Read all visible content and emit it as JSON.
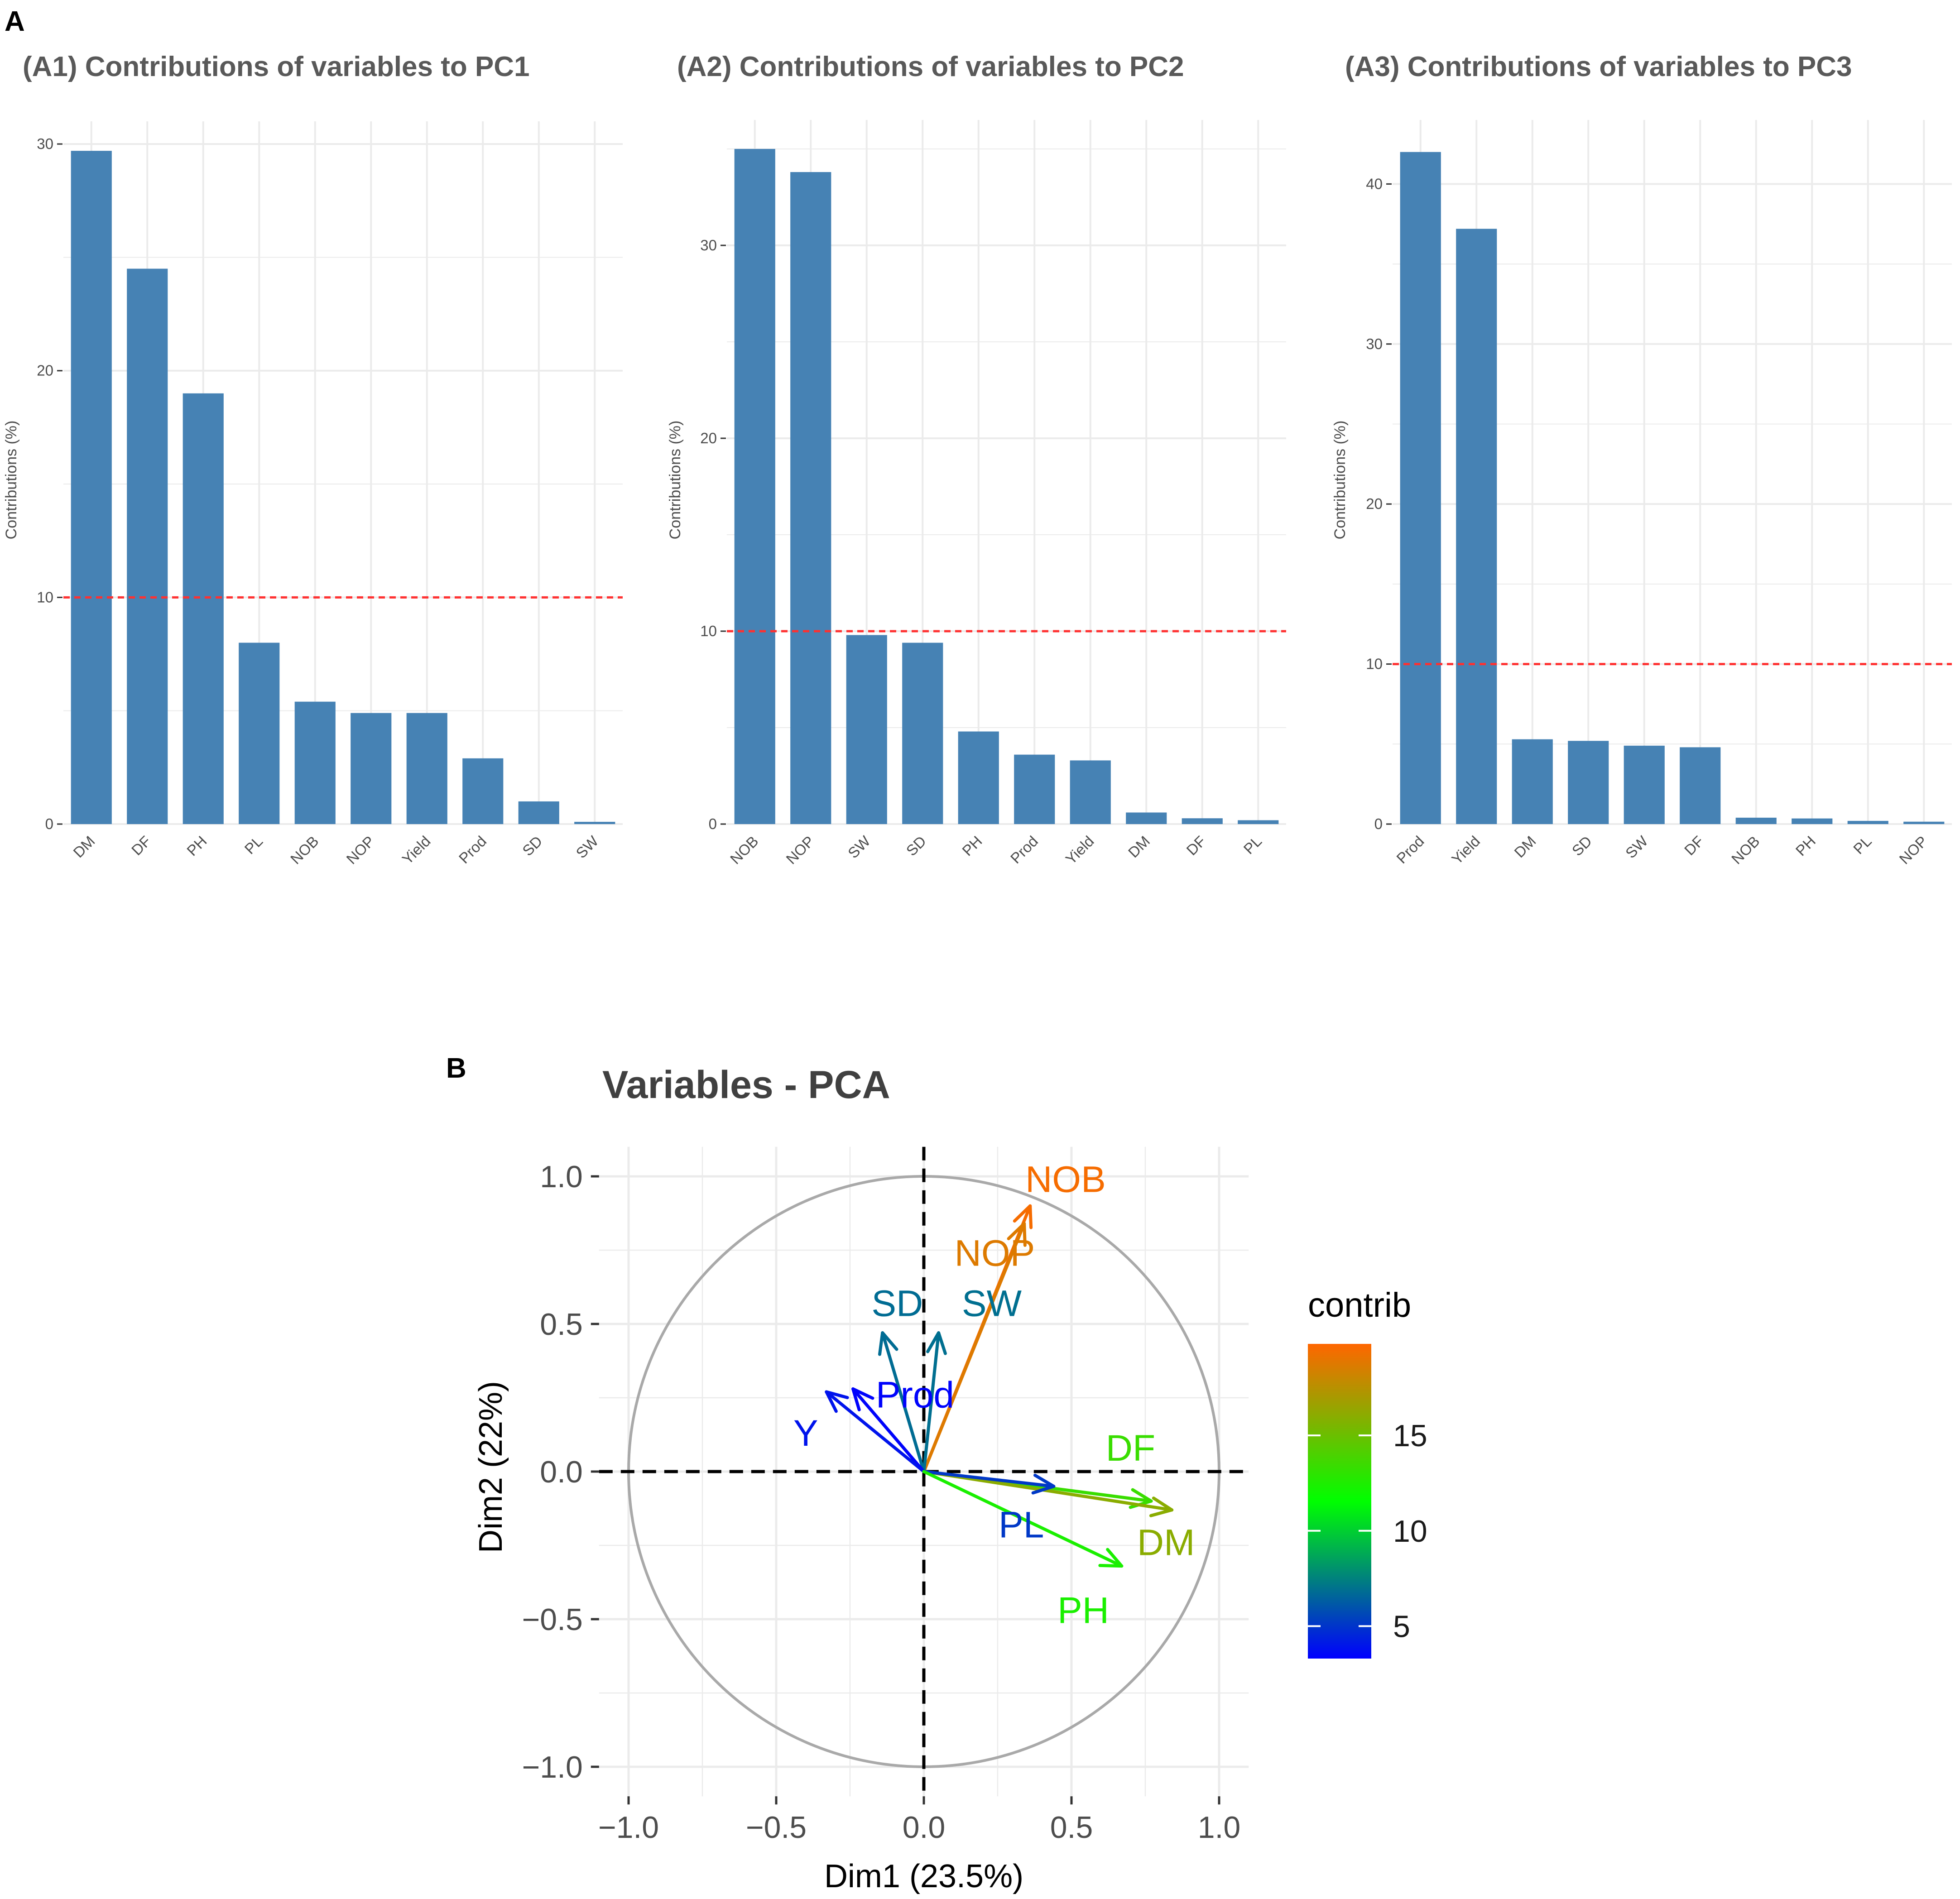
{
  "panel_labels": {
    "a": "A",
    "b": "B"
  },
  "colors": {
    "bar": "#4682b4",
    "threshold": "#ff3030",
    "grid": "#ebebeb",
    "circle": "#a9a9a9",
    "gradient": [
      "#0000ff",
      "#00ff00",
      "#ff6600"
    ]
  },
  "chart_data": [
    {
      "type": "bar",
      "title": "(A1) Contributions of variables to PC1",
      "ylabel": "Contributions (%)",
      "xlabel": "",
      "categories": [
        "DM",
        "DF",
        "PH",
        "PL",
        "NOB",
        "NOP",
        "Yield",
        "Prod",
        "SD",
        "SW"
      ],
      "values": [
        29.7,
        24.5,
        19.0,
        8.0,
        5.4,
        4.9,
        4.9,
        2.9,
        1.0,
        0.1
      ],
      "threshold": 10,
      "ylim": [
        0,
        31
      ],
      "yticks": [
        0,
        10,
        20,
        30
      ]
    },
    {
      "type": "bar",
      "title": "(A2) Contributions of variables to PC2",
      "ylabel": "Contributions (%)",
      "xlabel": "",
      "categories": [
        "NOB",
        "NOP",
        "SW",
        "SD",
        "PH",
        "Prod",
        "Yield",
        "DM",
        "DF",
        "PL"
      ],
      "values": [
        35.0,
        33.8,
        9.8,
        9.4,
        4.8,
        3.6,
        3.3,
        0.6,
        0.3,
        0.2
      ],
      "threshold": 10,
      "ylim": [
        0,
        36.5
      ],
      "yticks": [
        0,
        10,
        20,
        30
      ]
    },
    {
      "type": "bar",
      "title": "(A3) Contributions of variables to PC3",
      "ylabel": "Contributions (%)",
      "xlabel": "",
      "categories": [
        "Prod",
        "Yield",
        "DM",
        "SD",
        "SW",
        "DF",
        "NOB",
        "PH",
        "PL",
        "NOP"
      ],
      "values": [
        42.0,
        37.2,
        5.3,
        5.2,
        4.9,
        4.8,
        0.4,
        0.35,
        0.2,
        0.15
      ],
      "threshold": 10,
      "ylim": [
        0,
        44
      ],
      "yticks": [
        0,
        10,
        20,
        30,
        40
      ]
    },
    {
      "type": "scatter",
      "subtype": "pca-variable-correlation-circle",
      "title": "Variables - PCA",
      "xlabel": "Dim1 (23.5%)",
      "ylabel": "Dim2 (22%)",
      "xlim": [
        -1.1,
        1.1
      ],
      "ylim": [
        -1.1,
        1.1
      ],
      "xticks": [
        "−1.0",
        "−0.5",
        "0.0",
        "0.5",
        "1.0"
      ],
      "yticks": [
        "−1.0",
        "−0.5",
        "0.0",
        "0.5",
        "1.0"
      ],
      "xtick_values": [
        -1.0,
        -0.5,
        0.0,
        0.5,
        1.0
      ],
      "ytick_values": [
        -1.0,
        -0.5,
        0.0,
        0.5,
        1.0
      ],
      "legend_title": "contrib",
      "legend_position": "right",
      "legend_range": [
        3.3,
        19.8
      ],
      "legend_ticks": [
        {
          "value": 5,
          "label": "5"
        },
        {
          "value": 10,
          "label": "10"
        },
        {
          "value": 15,
          "label": "15"
        }
      ],
      "variables": [
        {
          "name": "NOB",
          "x": 0.36,
          "y": 0.9,
          "contrib": 19.5,
          "label_dx": 0.12,
          "label_dy": 0.09
        },
        {
          "name": "NOP",
          "x": 0.34,
          "y": 0.84,
          "contrib": 18.7,
          "label_dx": -0.1,
          "label_dy": -0.1
        },
        {
          "name": "SD",
          "x": -0.14,
          "y": 0.47,
          "contrib": 6.8,
          "label_dx": 0.05,
          "label_dy": 0.1
        },
        {
          "name": "SW",
          "x": 0.05,
          "y": 0.47,
          "contrib": 6.9,
          "label_dx": 0.18,
          "label_dy": 0.1
        },
        {
          "name": "Prod",
          "x": -0.24,
          "y": 0.28,
          "contrib": 3.4,
          "label_dx": 0.21,
          "label_dy": -0.02
        },
        {
          "name": "Y",
          "x": -0.33,
          "y": 0.27,
          "contrib": 3.9,
          "label_dx": -0.07,
          "label_dy": -0.14
        },
        {
          "name": "DF",
          "x": 0.77,
          "y": -0.1,
          "contrib": 13.4,
          "label_dx": -0.07,
          "label_dy": 0.18
        },
        {
          "name": "DM",
          "x": 0.84,
          "y": -0.13,
          "contrib": 16.0,
          "label_dx": -0.02,
          "label_dy": -0.11
        },
        {
          "name": "PL",
          "x": 0.44,
          "y": -0.05,
          "contrib": 5.1,
          "label_dx": -0.11,
          "label_dy": -0.13
        },
        {
          "name": "PH",
          "x": 0.67,
          "y": -0.32,
          "contrib": 12.4,
          "label_dx": -0.13,
          "label_dy": -0.15
        }
      ]
    }
  ]
}
